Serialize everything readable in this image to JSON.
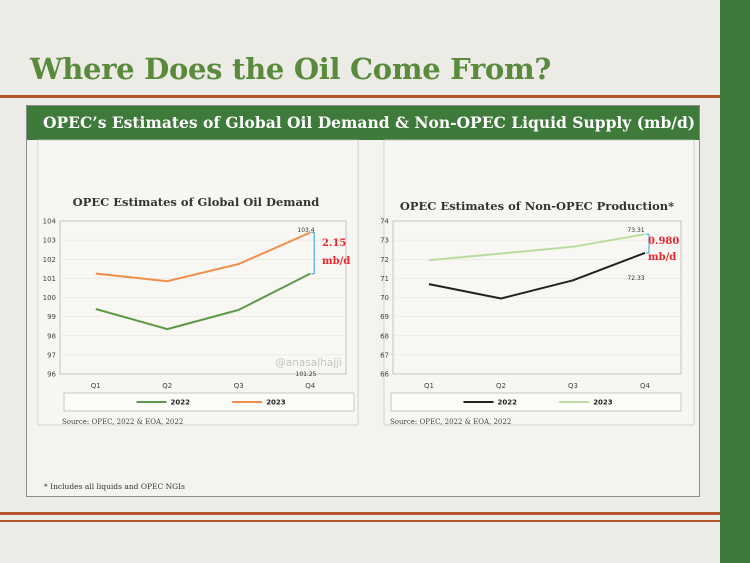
{
  "slide": {
    "title": "Where Does the Oil Come From?",
    "panel_header": "OPEC’s Estimates of Global Oil Demand & Non-OPEC Liquid Supply (mb/d)",
    "footnote": "* Includes all liquids and OPEC NGIs"
  },
  "colors": {
    "green_dark": "#3e7a3a",
    "accent_rule": "#b5532b",
    "series_2022_left": "#5e9a45",
    "series_2023_left": "#ef8e4b",
    "series_2022_right": "#222222",
    "series_2023_right": "#b9dda0",
    "gap_red": "#e8262d",
    "gap_bracket": "#55aee0"
  },
  "chart_data": [
    {
      "type": "line",
      "title": "OPEC Estimates of Global Oil Demand",
      "categories": [
        "Q1",
        "Q2",
        "Q3",
        "Q4"
      ],
      "series": [
        {
          "name": "2022",
          "values": [
            99.4,
            98.35,
            99.35,
            101.25
          ]
        },
        {
          "name": "2023",
          "values": [
            101.25,
            100.85,
            101.75,
            103.4
          ]
        }
      ],
      "ylim": [
        96,
        104
      ],
      "yticks": [
        "96",
        "97",
        "98",
        "99",
        "100",
        "101",
        "102",
        "103",
        "104"
      ],
      "point_labels": [
        "103.4",
        "101.25"
      ],
      "gap_label": [
        "2.15",
        "mb/d"
      ],
      "watermark": "@anasalhajji",
      "source": "Source: OPEC, 2022 & EOA, 2022",
      "legend_position": "bottom"
    },
    {
      "type": "line",
      "title": "OPEC Estimates of Non-OPEC Production*",
      "categories": [
        "Q1",
        "Q2",
        "Q3",
        "Q4"
      ],
      "series": [
        {
          "name": "2022",
          "values": [
            70.7,
            69.95,
            70.9,
            72.33
          ]
        },
        {
          "name": "2023",
          "values": [
            71.95,
            72.3,
            72.65,
            73.31
          ]
        }
      ],
      "ylim": [
        66,
        74
      ],
      "yticks": [
        "66",
        "67",
        "68",
        "69",
        "70",
        "71",
        "72",
        "73",
        "74"
      ],
      "point_labels": [
        "73.31",
        "72.33"
      ],
      "gap_label": [
        "0.980",
        "mb/d"
      ],
      "source": "Source: OPEC, 2022 & EOA, 2022",
      "legend_position": "bottom"
    }
  ]
}
